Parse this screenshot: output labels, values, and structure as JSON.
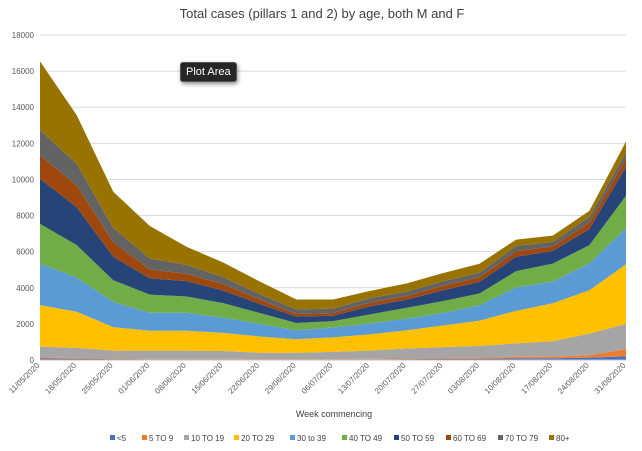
{
  "tooltip": {
    "label": "Plot Area"
  },
  "chart_data": {
    "type": "area",
    "stacked": true,
    "title": "Total cases (pillars 1 and 2) by age, both M and F",
    "xlabel": "Week commencing",
    "ylabel": "",
    "ylim": [
      0,
      18000
    ],
    "yticks": [
      0,
      2000,
      4000,
      6000,
      8000,
      10000,
      12000,
      14000,
      16000,
      18000
    ],
    "grid": true,
    "legend_position": "bottom",
    "categories": [
      "11/05/2020",
      "18/05/2020",
      "25/05/2020",
      "01/06/2020",
      "08/06/2020",
      "15/06/2020",
      "22/06/2020",
      "29/06/2020",
      "06/07/2020",
      "13/07/2020",
      "20/07/2020",
      "27/07/2020",
      "03/08/2020",
      "10/08/2020",
      "17/08/2020",
      "24/08/2020",
      "31/08/2020"
    ],
    "series": [
      {
        "name": "<5",
        "color": "#4472c4",
        "values": [
          80,
          70,
          50,
          40,
          40,
          40,
          30,
          30,
          30,
          40,
          50,
          60,
          70,
          90,
          100,
          130,
          200
        ]
      },
      {
        "name": "5 TO 9",
        "color": "#ed7d31",
        "values": [
          60,
          50,
          40,
          30,
          30,
          30,
          20,
          20,
          20,
          30,
          40,
          50,
          60,
          80,
          90,
          130,
          400
        ]
      },
      {
        "name": "10 TO 19",
        "color": "#a5a5a5",
        "values": [
          600,
          550,
          430,
          450,
          450,
          430,
          350,
          350,
          400,
          450,
          550,
          600,
          650,
          750,
          850,
          1200,
          1400
        ]
      },
      {
        "name": "20 TO 29",
        "color": "#ffc000",
        "values": [
          2300,
          2000,
          1300,
          1100,
          1100,
          1000,
          900,
          750,
          800,
          900,
          1000,
          1200,
          1400,
          1800,
          2100,
          2400,
          3300
        ]
      },
      {
        "name": "30 to 39",
        "color": "#5b9bd5",
        "values": [
          2300,
          1900,
          1400,
          1000,
          1000,
          850,
          700,
          500,
          550,
          600,
          650,
          700,
          850,
          1300,
          1200,
          1500,
          2000
        ]
      },
      {
        "name": "40 TO 49",
        "color": "#70ad47",
        "values": [
          2200,
          1800,
          1200,
          1000,
          900,
          800,
          600,
          400,
          350,
          500,
          600,
          650,
          650,
          900,
          1000,
          1000,
          1800
        ]
      },
      {
        "name": "50 TO 59",
        "color": "#264478",
        "values": [
          2500,
          2100,
          1300,
          900,
          850,
          700,
          500,
          350,
          300,
          450,
          450,
          600,
          650,
          800,
          700,
          900,
          1600
        ]
      },
      {
        "name": "60 TO 69",
        "color": "#9e480e",
        "values": [
          1300,
          1200,
          800,
          500,
          400,
          350,
          250,
          150,
          150,
          200,
          200,
          250,
          250,
          300,
          250,
          350,
          450
        ]
      },
      {
        "name": "70 TO 79",
        "color": "#636363",
        "values": [
          1400,
          1200,
          800,
          600,
          500,
          400,
          300,
          250,
          250,
          250,
          250,
          250,
          250,
          300,
          250,
          300,
          350
        ]
      },
      {
        "name": "80+",
        "color": "#997300",
        "values": [
          3800,
          2700,
          2000,
          1800,
          1000,
          800,
          700,
          550,
          500,
          400,
          450,
          450,
          500,
          350,
          350,
          350,
          600
        ]
      }
    ]
  }
}
